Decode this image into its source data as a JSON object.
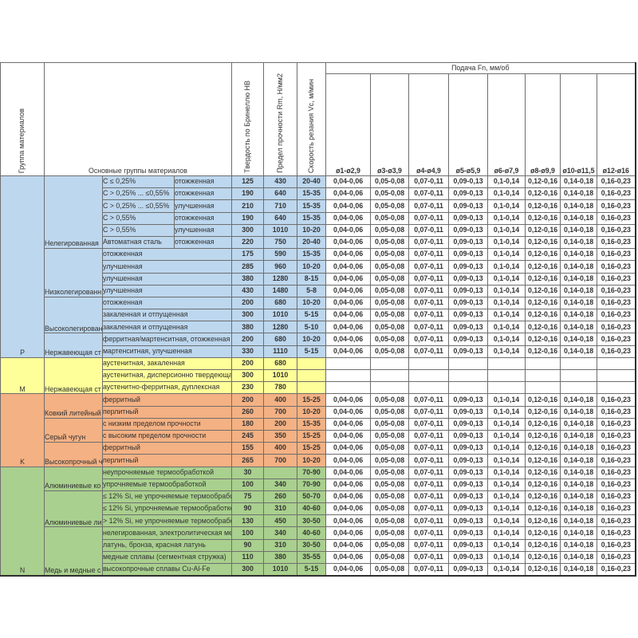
{
  "page": {
    "background": "#ffffff"
  },
  "colors": {
    "section_p": "#bdd7ee",
    "section_m": "#ffff99",
    "section_k": "#f4b183",
    "section_n": "#a9d08e",
    "grid_line": "#6e6e6e",
    "text": "#333333",
    "white_cell": "#ffffff"
  },
  "header": {
    "col_group": "Группа материалов",
    "col_main_groups": "Основные группы материалов",
    "col_hardness": "Твердость по Бринеллю НВ",
    "col_strength": "Предел прочности Rm, Н/мм2",
    "col_speed": "Скорость резания Vc, м/мин",
    "feed_title": "Подача Fn, мм/об",
    "diameters": [
      "ø1-ø2,9",
      "ø3-ø3,9",
      "ø4-ø4,9",
      "ø5-ø5,9",
      "ø6-ø7,9",
      "ø8-ø9,9",
      "ø10-ø11,5",
      "ø12-ø16"
    ]
  },
  "feed_values": [
    "0,04-0,06",
    "0,05-0,08",
    "0,07-0,11",
    "0,09-0,13",
    "0,1-0,14",
    "0,12-0,16",
    "0,14-0,18",
    "0,16-0,23"
  ],
  "sections": [
    {
      "letter": "P",
      "color": "#bdd7ee",
      "subgroups": [
        {
          "label": "Нелегированная",
          "rows": [
            {
              "c": "C ≤ 0,25%",
              "d": "отожженная",
              "hb": "125",
              "rm": "430",
              "vc": "20-40",
              "feeds": true
            },
            {
              "c": "C > 0,25% ... ≤0,55%",
              "d": "отожженная",
              "hb": "190",
              "rm": "640",
              "vc": "15-35",
              "feeds": true
            },
            {
              "c": "C > 0,25% ... ≤0,55%",
              "d": "улучшенная",
              "hb": "210",
              "rm": "710",
              "vc": "15-35",
              "feeds": true
            },
            {
              "c": "C > 0,55%",
              "d": "отожженная",
              "hb": "190",
              "rm": "640",
              "vc": "15-35",
              "feeds": true
            },
            {
              "c": "C > 0,55%",
              "d": "улучшенная",
              "hb": "300",
              "rm": "1010",
              "vc": "10-20",
              "feeds": true
            },
            {
              "c": "Автоматная сталь",
              "d": "отожженная",
              "hb": "220",
              "rm": "750",
              "vc": "20-40",
              "feeds": true
            }
          ]
        },
        {
          "label": "Низколегированн",
          "rows": [
            {
              "cd": "отожженная",
              "hb": "175",
              "rm": "590",
              "vc": "15-35",
              "feeds": true
            },
            {
              "cd": "улучшенная",
              "hb": "285",
              "rm": "960",
              "vc": "10-20",
              "feeds": true
            },
            {
              "cd": "улучшенная",
              "hb": "380",
              "rm": "1280",
              "vc": "8-15",
              "feeds": true
            },
            {
              "cd": "улучшенная",
              "hb": "430",
              "rm": "1480",
              "vc": "5-8",
              "feeds": true
            }
          ]
        },
        {
          "label": "Высоколегирован",
          "rows": [
            {
              "cd": "отожженная",
              "hb": "200",
              "rm": "680",
              "vc": "10-20",
              "feeds": true
            },
            {
              "cd": "закаленная и отпущенная",
              "hb": "300",
              "rm": "1010",
              "vc": "5-15",
              "feeds": true
            },
            {
              "cd": "закаленная и отпущенная",
              "hb": "380",
              "rm": "1280",
              "vc": "5-10",
              "feeds": true
            }
          ]
        },
        {
          "label": "Нержавеющая ст",
          "rows": [
            {
              "cd": "ферритная/мартенситная, отожженная",
              "hb": "200",
              "rm": "680",
              "vc": "10-20",
              "feeds": true
            },
            {
              "cd": "мартенситная, улучшенная",
              "hb": "330",
              "rm": "1110",
              "vc": "5-15",
              "feeds": true
            }
          ]
        }
      ]
    },
    {
      "letter": "M",
      "color": "#ffff99",
      "subgroups": [
        {
          "label": "Нержавеющая ст",
          "rows": [
            {
              "cd": "аустенитная, закаленная",
              "hb": "200",
              "rm": "680",
              "vc": "",
              "feeds": false
            },
            {
              "cd": "аустенитная, дисперсионно твердеюща",
              "hb": "300",
              "rm": "1010",
              "vc": "",
              "feeds": false
            },
            {
              "cd": "аустенитно-ферритная, дуплексная",
              "hb": "230",
              "rm": "780",
              "vc": "",
              "feeds": false
            }
          ]
        }
      ]
    },
    {
      "letter": "K",
      "color": "#f4b183",
      "subgroups": [
        {
          "label": "Ковкий литейный",
          "rows": [
            {
              "cd": "ферритный",
              "hb": "200",
              "rm": "400",
              "vc": "15-25",
              "feeds": true
            },
            {
              "cd": "перлитный",
              "hb": "260",
              "rm": "700",
              "vc": "10-20",
              "feeds": true
            }
          ]
        },
        {
          "label": "Серый чугун",
          "rows": [
            {
              "cd": "с низким пределом прочности",
              "hb": "180",
              "rm": "200",
              "vc": "15-35",
              "feeds": true
            },
            {
              "cd": "с высоким пределом прочности",
              "hb": "245",
              "rm": "350",
              "vc": "15-25",
              "feeds": true
            }
          ]
        },
        {
          "label": "Высокопрочный ч",
          "rows": [
            {
              "cd": "ферритный",
              "hb": "155",
              "rm": "400",
              "vc": "15-25",
              "feeds": true
            },
            {
              "cd": "перлитный",
              "hb": "265",
              "rm": "700",
              "vc": "10-20",
              "feeds": true
            }
          ]
        }
      ]
    },
    {
      "letter": "N",
      "color": "#a9d08e",
      "subgroups": [
        {
          "label": "Алюминиевые ко",
          "rows": [
            {
              "cd": "неупрочняемые термообработкой",
              "hb": "30",
              "rm": "",
              "vc": "70-90",
              "feeds": true
            },
            {
              "cd": "упрочняемые термообработкой",
              "hb": "100",
              "rm": "340",
              "vc": "70-90",
              "feeds": true
            }
          ]
        },
        {
          "label": "Алюминиевые ли",
          "rows": [
            {
              "cd": "≤ 12% Si, не упрочняемые термообрабо",
              "hb": "75",
              "rm": "260",
              "vc": "50-70",
              "feeds": true
            },
            {
              "cd": "≤ 12% Si, упрочняемые термообработко",
              "hb": "90",
              "rm": "310",
              "vc": "40-60",
              "feeds": true
            },
            {
              "cd": "> 12% Si, не упрочняемые термообрабо",
              "hb": "130",
              "rm": "450",
              "vc": "30-50",
              "feeds": true
            }
          ]
        },
        {
          "label": "Медь и медные с",
          "rows": [
            {
              "cd": "нелегированная, электролитическая ме",
              "hb": "100",
              "rm": "340",
              "vc": "40-60",
              "feeds": true
            },
            {
              "cd": "латунь, бронза, красная латунь",
              "hb": "90",
              "rm": "310",
              "vc": "30-50",
              "feeds": true
            },
            {
              "cd": "медные сплавы (сегментная стружка)",
              "hb": "110",
              "rm": "380",
              "vc": "35-55",
              "feeds": true
            },
            {
              "cd": "высокопрочные сплавы Cu-Al-Fe",
              "hb": "300",
              "rm": "1010",
              "vc": "5-15",
              "feeds": true
            }
          ]
        }
      ]
    }
  ]
}
